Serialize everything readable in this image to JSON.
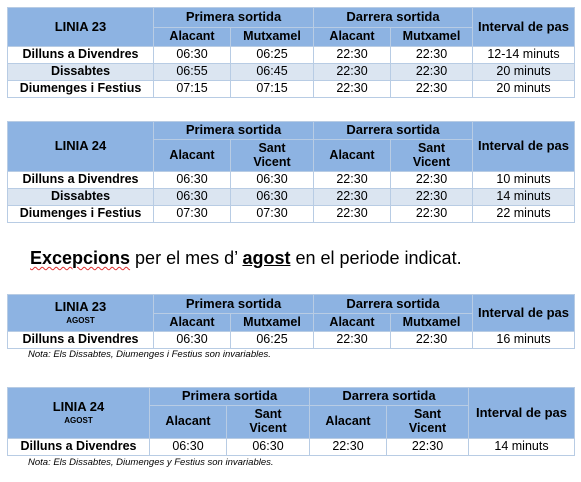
{
  "headers": {
    "first_departure": "Primera sortida",
    "last_departure": "Darrera sortida",
    "interval": "Interval de pas",
    "alacant": "Alacant",
    "mutxamel": "Mutxamel",
    "sant_vicent": "Sant Vicent"
  },
  "table1": {
    "line": "LINIA 23",
    "rows": [
      {
        "day": "Dilluns a Divendres",
        "first_a": "06:30",
        "first_b": "06:25",
        "last_a": "22:30",
        "last_b": "22:30",
        "interval": "12-14 minuts"
      },
      {
        "day": "Dissabtes",
        "first_a": "06:55",
        "first_b": "06:45",
        "last_a": "22:30",
        "last_b": "22:30",
        "interval": "20 minuts"
      },
      {
        "day": "Diumenges i Festius",
        "first_a": "07:15",
        "first_b": "07:15",
        "last_a": "22:30",
        "last_b": "22:30",
        "interval": "20 minuts"
      }
    ]
  },
  "table2": {
    "line": "LINIA 24",
    "rows": [
      {
        "day": "Dilluns a Divendres",
        "first_a": "06:30",
        "first_b": "06:30",
        "last_a": "22:30",
        "last_b": "22:30",
        "interval": "10 minuts"
      },
      {
        "day": "Dissabtes",
        "first_a": "06:30",
        "first_b": "06:30",
        "last_a": "22:30",
        "last_b": "22:30",
        "interval": "14 minuts"
      },
      {
        "day": "Diumenges i Festius",
        "first_a": "07:30",
        "first_b": "07:30",
        "last_a": "22:30",
        "last_b": "22:30",
        "interval": "22 minuts"
      }
    ]
  },
  "exceptions": {
    "part1": "Excepcions",
    "part2": " per el mes d’ ",
    "part3": "agost",
    "part4": " en el periode indicat."
  },
  "table3": {
    "line": "LINIA 23",
    "sub": "AGOST",
    "rows": [
      {
        "day": "Dilluns a Divendres",
        "first_a": "06:30",
        "first_b": "06:25",
        "last_a": "22:30",
        "last_b": "22:30",
        "interval": "16 minuts"
      }
    ],
    "note": "Nota: Els Dissabtes, Diumenges i Festius son invariables."
  },
  "table4": {
    "line": "LINIA 24",
    "sub": "AGOST",
    "rows": [
      {
        "day": "Dilluns a Divendres",
        "first_a": "06:30",
        "first_b": "06:30",
        "last_a": "22:30",
        "last_b": "22:30",
        "interval": "14 minuts"
      }
    ],
    "note": "Nota: Els Dissabtes, Diumenges y Festius son invariables."
  }
}
